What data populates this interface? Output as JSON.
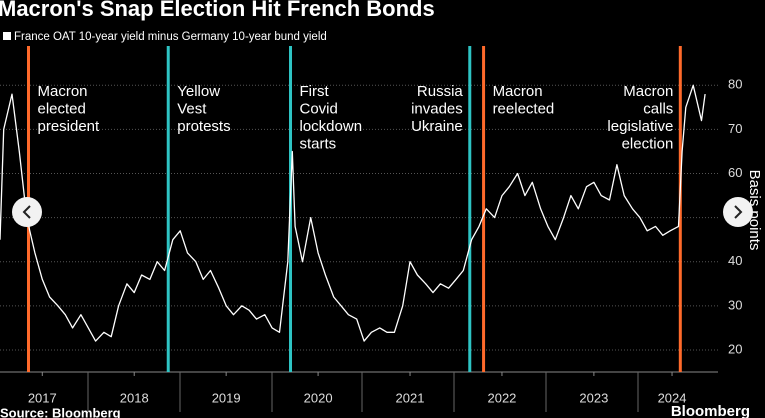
{
  "chart_data": {
    "type": "line",
    "title": "Macron's Snap Election Hit French Bonds",
    "y_label": "Basis points",
    "source": "Source: Bloomberg",
    "brand": "Bloomberg",
    "xlim": [
      2017.04,
      2024.85
    ],
    "xticks": [
      {
        "value": 2017.5,
        "label": "2017"
      },
      {
        "value": 2018.5,
        "label": "2018"
      },
      {
        "value": 2019.5,
        "label": "2019"
      },
      {
        "value": 2020.5,
        "label": "2020"
      },
      {
        "value": 2021.5,
        "label": "2021"
      },
      {
        "value": 2022.5,
        "label": "2022"
      },
      {
        "value": 2023.5,
        "label": "2023"
      },
      {
        "value": 2024.35,
        "label": "2024"
      }
    ],
    "ylim": [
      15,
      88
    ],
    "yticks": [
      20,
      30,
      40,
      50,
      60,
      70,
      80
    ],
    "grid": true,
    "series": [
      {
        "name": "France OAT 10-year yield minus Germany 10-year bund yield",
        "color": "#ffffff",
        "x": [
          2017.04,
          2017.08,
          2017.17,
          2017.25,
          2017.33,
          2017.42,
          2017.5,
          2017.58,
          2017.67,
          2017.75,
          2017.83,
          2017.92,
          2018.0,
          2018.08,
          2018.17,
          2018.25,
          2018.33,
          2018.42,
          2018.5,
          2018.58,
          2018.67,
          2018.75,
          2018.83,
          2018.92,
          2019.0,
          2019.08,
          2019.17,
          2019.25,
          2019.33,
          2019.42,
          2019.5,
          2019.58,
          2019.67,
          2019.75,
          2019.83,
          2019.92,
          2020.0,
          2020.08,
          2020.17,
          2020.22,
          2020.25,
          2020.33,
          2020.42,
          2020.5,
          2020.58,
          2020.67,
          2020.75,
          2020.83,
          2020.92,
          2021.0,
          2021.08,
          2021.17,
          2021.25,
          2021.33,
          2021.42,
          2021.5,
          2021.58,
          2021.67,
          2021.75,
          2021.83,
          2021.92,
          2022.0,
          2022.08,
          2022.17,
          2022.25,
          2022.33,
          2022.42,
          2022.5,
          2022.58,
          2022.67,
          2022.75,
          2022.83,
          2022.92,
          2023.0,
          2023.08,
          2023.17,
          2023.25,
          2023.33,
          2023.42,
          2023.5,
          2023.58,
          2023.67,
          2023.75,
          2023.83,
          2023.92,
          2024.0,
          2024.08,
          2024.17,
          2024.25,
          2024.33,
          2024.42,
          2024.46,
          2024.5,
          2024.58,
          2024.67,
          2024.71
        ],
        "values": [
          45,
          70,
          78,
          65,
          50,
          42,
          36,
          32,
          30,
          28,
          25,
          28,
          25,
          22,
          24,
          23,
          30,
          35,
          33,
          37,
          36,
          40,
          38,
          45,
          47,
          42,
          40,
          36,
          38,
          34,
          30,
          28,
          30,
          29,
          27,
          28,
          25,
          24,
          40,
          65,
          48,
          40,
          50,
          42,
          37,
          32,
          30,
          28,
          27,
          22,
          24,
          25,
          24,
          24,
          30,
          40,
          37,
          35,
          33,
          35,
          34,
          36,
          38,
          45,
          48,
          52,
          50,
          55,
          57,
          60,
          55,
          58,
          52,
          48,
          45,
          50,
          55,
          52,
          57,
          58,
          55,
          54,
          62,
          55,
          52,
          50,
          47,
          48,
          46,
          47,
          48,
          65,
          75,
          80,
          72,
          78
        ]
      }
    ],
    "events": [
      {
        "x": 2017.35,
        "color": "#ff6a2b",
        "label": [
          "Macron",
          "elected",
          "president"
        ]
      },
      {
        "x": 2018.87,
        "color": "#2ec4c4",
        "label": [
          "Yellow",
          "Vest",
          "protests"
        ]
      },
      {
        "x": 2020.2,
        "color": "#2ec4c4",
        "label": [
          "First",
          "Covid",
          "lockdown",
          "starts"
        ]
      },
      {
        "x": 2022.15,
        "color": "#2ec4c4",
        "label": [
          "Russia",
          "invades",
          "Ukraine"
        ]
      },
      {
        "x": 2022.3,
        "color": "#ff6a2b",
        "label": [
          "Macron",
          "reelected"
        ]
      },
      {
        "x": 2024.44,
        "color": "#ff6a2b",
        "label": [
          "Macron",
          "calls",
          "legislative",
          "election"
        ]
      }
    ]
  }
}
